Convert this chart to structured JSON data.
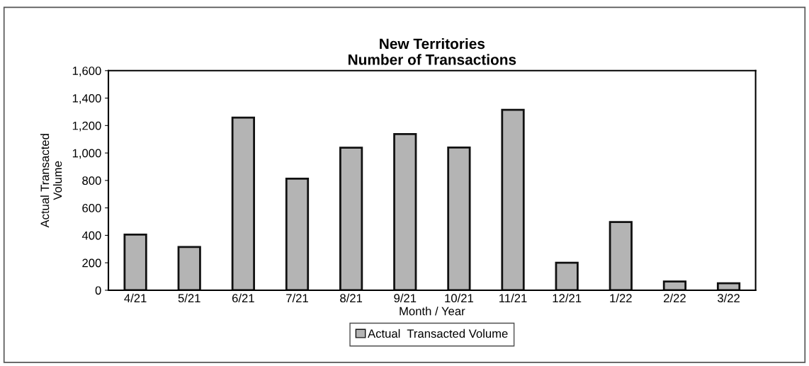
{
  "chart_data": {
    "type": "bar",
    "title": "New Territories\nNumber of Transactions",
    "xlabel": "Month / Year",
    "ylabel": "Actual Transacted\nVolume",
    "categories": [
      "4/21",
      "5/21",
      "6/21",
      "7/21",
      "8/21",
      "9/21",
      "10/21",
      "11/21",
      "12/21",
      "1/22",
      "2/22",
      "3/22"
    ],
    "series": [
      {
        "name": "Actual  Transacted Volume",
        "color": "#b4b4b4",
        "values": [
          405,
          315,
          1258,
          813,
          1039,
          1138,
          1040,
          1314,
          200,
          497,
          64,
          51
        ]
      }
    ],
    "ylim": [
      0,
      1600
    ],
    "yticks": [
      {
        "value": 0,
        "label": "0"
      },
      {
        "value": 200,
        "label": "200"
      },
      {
        "value": 400,
        "label": "400"
      },
      {
        "value": 600,
        "label": "600"
      },
      {
        "value": 800,
        "label": "800"
      },
      {
        "value": 1000,
        "label": "1,000"
      },
      {
        "value": 1200,
        "label": "1,200"
      },
      {
        "value": 1400,
        "label": "1,400"
      },
      {
        "value": 1600,
        "label": "1,600"
      }
    ],
    "grid": false,
    "legend": "bottom"
  }
}
